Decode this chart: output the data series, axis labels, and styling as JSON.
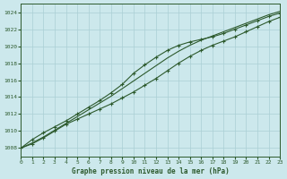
{
  "title": "Graphe pression niveau de la mer (hPa)",
  "bg_color": "#cce8ec",
  "grid_color": "#aacfd4",
  "line_color": "#2d5a2d",
  "ylim": [
    1007,
    1025
  ],
  "xlim": [
    0,
    23
  ],
  "yticks": [
    1008,
    1010,
    1012,
    1014,
    1016,
    1018,
    1020,
    1022,
    1024
  ],
  "xticks": [
    0,
    1,
    2,
    3,
    4,
    5,
    6,
    7,
    8,
    9,
    10,
    11,
    12,
    13,
    14,
    15,
    16,
    17,
    18,
    19,
    20,
    21,
    22,
    23
  ],
  "series1": [
    1008.0,
    1008.5,
    1009.2,
    1010.0,
    1010.8,
    1011.4,
    1012.0,
    1012.6,
    1013.2,
    1013.9,
    1014.6,
    1015.4,
    1016.2,
    1017.1,
    1018.0,
    1018.8,
    1019.5,
    1020.1,
    1020.6,
    1021.1,
    1021.7,
    1022.3,
    1022.9,
    1023.4
  ],
  "series2": [
    1008.0,
    1009.0,
    1009.8,
    1010.5,
    1011.2,
    1012.0,
    1012.8,
    1013.6,
    1014.5,
    1015.5,
    1016.8,
    1017.8,
    1018.7,
    1019.5,
    1020.1,
    1020.5,
    1020.8,
    1021.1,
    1021.5,
    1022.0,
    1022.5,
    1023.0,
    1023.5,
    1023.9
  ],
  "series3": [
    1008.0,
    1008.6,
    1009.3,
    1010.1,
    1010.9,
    1011.7,
    1012.5,
    1013.3,
    1014.1,
    1015.0,
    1015.9,
    1016.8,
    1017.7,
    1018.6,
    1019.4,
    1020.1,
    1020.7,
    1021.2,
    1021.7,
    1022.2,
    1022.7,
    1023.2,
    1023.7,
    1024.1
  ]
}
